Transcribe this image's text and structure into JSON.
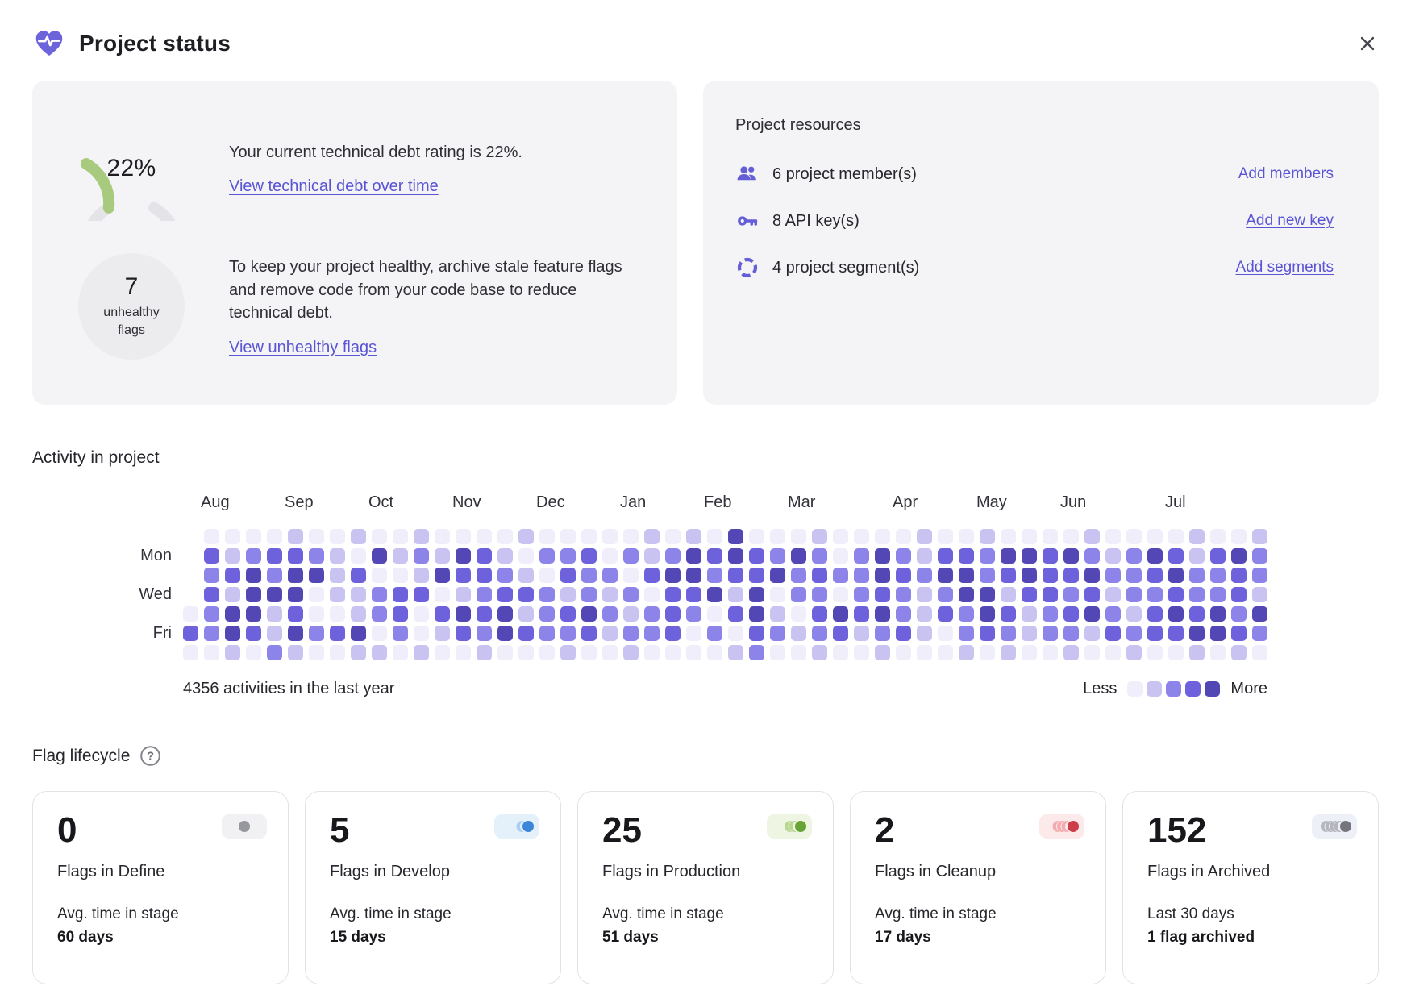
{
  "header": {
    "title": "Project status"
  },
  "debt_card": {
    "gauge_value": "22%",
    "gauge_percent": 22,
    "line1": "Your current technical debt rating is 22%.",
    "link1": "View technical debt over time",
    "unhealthy_count": "7",
    "unhealthy_label": "unhealthy flags",
    "line2": "To keep your project healthy, archive stale feature flags and remove code from your code base to reduce technical debt.",
    "link2": "View unhealthy flags"
  },
  "resources_card": {
    "title": "Project resources",
    "rows": [
      {
        "icon": "members-icon",
        "label": "6 project member(s)",
        "link": "Add members"
      },
      {
        "icon": "key-icon",
        "label": "8 API key(s)",
        "link": "Add new key"
      },
      {
        "icon": "segments-icon",
        "label": "4 project segment(s)",
        "link": "Add segments"
      }
    ]
  },
  "activity": {
    "title": "Activity in project"
  },
  "chart_data": {
    "type": "heatmap",
    "title": "Activity in project",
    "total_label": "4356 activities in the last year",
    "legend": {
      "less": "Less",
      "more": "More"
    },
    "weeks": 52,
    "months": [
      "Aug",
      "Sep",
      "Oct",
      "Nov",
      "Dec",
      "Jan",
      "Feb",
      "Mar",
      "Apr",
      "May",
      "Jun",
      "Jul"
    ],
    "month_cols": [
      1,
      5,
      9,
      13,
      17,
      21,
      25,
      29,
      34,
      38,
      42,
      47
    ],
    "day_labels": [
      {
        "label": "Mon",
        "row": 1
      },
      {
        "label": "Wed",
        "row": 3
      },
      {
        "label": "Fri",
        "row": 5
      }
    ],
    "palette": [
      "#f0eefb",
      "#c9c3f2",
      "#8d84ea",
      "#6e62dc",
      "#5347b6"
    ],
    "grid": [
      "x000010010010000100000101040001000010010000100001001",
      "x312332104121431022302124343242024213324434212431342",
      "x234244130014332103220344233423224324423433422342232",
      "x314440112330123321212033414022023212441332312232231",
      "024413001230343412342123203410343421324312342134342 4",
      "324314234020132432231223020321231231023212213233443 2",
      "001021001101001000100100001200100100010100100100101 0"
    ]
  },
  "lifecycle": {
    "title": "Flag lifecycle",
    "cards": [
      {
        "value": "0",
        "label": "Flags in Define",
        "sub1": "Avg. time in stage",
        "sub2": "60 days",
        "badge": {
          "pill_bg": "#f1f1f4",
          "dot": "#97979e",
          "echo": "#c9c9cf",
          "echoes": 0
        }
      },
      {
        "value": "5",
        "label": "Flags in Develop",
        "sub1": "Avg. time in stage",
        "sub2": "15 days",
        "badge": {
          "pill_bg": "#e4f1fb",
          "dot": "#3c86d9",
          "echo": "#a9cdf3",
          "echoes": 1
        }
      },
      {
        "value": "25",
        "label": "Flags in Production",
        "sub1": "Avg. time in stage",
        "sub2": "51 days",
        "badge": {
          "pill_bg": "#eff5e3",
          "dot": "#67a335",
          "echo": "#b9d793",
          "echoes": 2
        }
      },
      {
        "value": "2",
        "label": "Flags in Cleanup",
        "sub1": "Avg. time in stage",
        "sub2": "17 days",
        "badge": {
          "pill_bg": "#fceaeb",
          "dot": "#cc3e49",
          "echo": "#f2abb0",
          "echoes": 3
        }
      },
      {
        "value": "152",
        "label": "Flags in Archived",
        "sub1": "Last 30 days",
        "sub2": "1 flag archived",
        "badge": {
          "pill_bg": "#eef0f8",
          "dot": "#75757d",
          "echo": "#b5b5bd",
          "echoes": 4
        }
      }
    ]
  },
  "colors": {
    "accent_purple": "#5a55d4",
    "icon_purple": "#645fd6",
    "heart_purple": "#6c64da",
    "gauge_green": "#a8ca7e",
    "gauge_track": "#e3e3e8",
    "panel_bg": "#f4f4f6",
    "circle_bg": "#ececef"
  }
}
